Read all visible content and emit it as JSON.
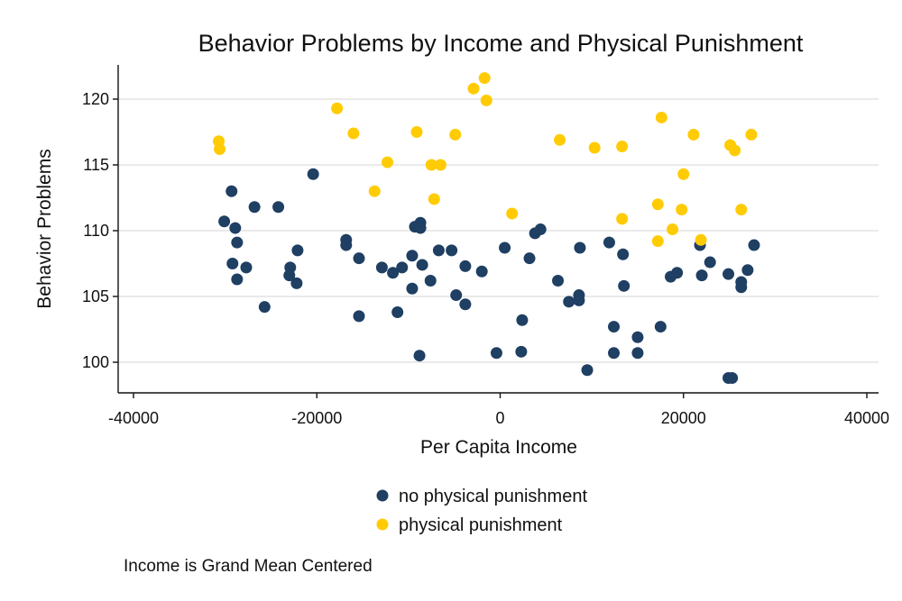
{
  "chart_data": {
    "type": "scatter",
    "title": "Behavior Problems by Income and Physical Punishment",
    "xlabel": "Per Capita Income",
    "ylabel": "Behavior Problems",
    "note": "Income is Grand Mean Centered",
    "xlim": [
      -40000,
      40000
    ],
    "ylim": [
      98,
      122.5
    ],
    "x_ticks": [
      -40000,
      -20000,
      0,
      20000,
      40000
    ],
    "x_tick_labels": [
      "-40000",
      "-20000",
      "0",
      "20000",
      "40000"
    ],
    "y_ticks": [
      100,
      105,
      110,
      115,
      120
    ],
    "y_tick_labels": [
      "100",
      "105",
      "110",
      "115",
      "120"
    ],
    "grid": "horizontal",
    "legend_position": "bottom",
    "series": [
      {
        "name": "no physical punishment",
        "color": "#1f3f63",
        "points": [
          [
            -30100,
            110.7
          ],
          [
            -29300,
            113.0
          ],
          [
            -28900,
            110.2
          ],
          [
            -28700,
            109.1
          ],
          [
            -29200,
            107.5
          ],
          [
            -28700,
            106.3
          ],
          [
            -27700,
            107.2
          ],
          [
            -26800,
            111.8
          ],
          [
            -25700,
            104.2
          ],
          [
            -24200,
            111.8
          ],
          [
            -22900,
            107.2
          ],
          [
            -23000,
            106.6
          ],
          [
            -22200,
            106.0
          ],
          [
            -22100,
            108.5
          ],
          [
            -20400,
            114.3
          ],
          [
            -16800,
            109.3
          ],
          [
            -16800,
            108.9
          ],
          [
            -15400,
            107.9
          ],
          [
            -15400,
            103.5
          ],
          [
            -12900,
            107.2
          ],
          [
            -11700,
            106.8
          ],
          [
            -11200,
            103.8
          ],
          [
            -10700,
            107.2
          ],
          [
            -9600,
            108.1
          ],
          [
            -9600,
            105.6
          ],
          [
            -9300,
            110.3
          ],
          [
            -8700,
            110.6
          ],
          [
            -8700,
            110.2
          ],
          [
            -8500,
            107.4
          ],
          [
            -8800,
            100.5
          ],
          [
            -7600,
            106.2
          ],
          [
            -6700,
            108.5
          ],
          [
            -5300,
            108.5
          ],
          [
            -4800,
            105.1
          ],
          [
            -3800,
            107.3
          ],
          [
            -3800,
            104.4
          ],
          [
            -2000,
            106.9
          ],
          [
            -400,
            100.7
          ],
          [
            500,
            108.7
          ],
          [
            2400,
            103.2
          ],
          [
            2300,
            100.8
          ],
          [
            3200,
            107.9
          ],
          [
            3800,
            109.8
          ],
          [
            4400,
            110.1
          ],
          [
            6300,
            106.2
          ],
          [
            7500,
            104.6
          ],
          [
            8600,
            104.7
          ],
          [
            8600,
            105.1
          ],
          [
            8700,
            108.7
          ],
          [
            9500,
            99.4
          ],
          [
            11900,
            109.1
          ],
          [
            12400,
            102.7
          ],
          [
            12400,
            100.7
          ],
          [
            13400,
            108.2
          ],
          [
            13500,
            105.8
          ],
          [
            15000,
            101.9
          ],
          [
            15000,
            100.7
          ],
          [
            17500,
            102.7
          ],
          [
            18600,
            106.5
          ],
          [
            19300,
            106.8
          ],
          [
            21800,
            108.9
          ],
          [
            22000,
            106.6
          ],
          [
            22900,
            107.6
          ],
          [
            24900,
            106.7
          ],
          [
            24900,
            98.8
          ],
          [
            25300,
            98.8
          ],
          [
            26300,
            106.1
          ],
          [
            26300,
            105.7
          ],
          [
            27000,
            107.0
          ],
          [
            27700,
            108.9
          ]
        ]
      },
      {
        "name": "physical punishment",
        "color": "#ffcb05",
        "points": [
          [
            -30700,
            116.8
          ],
          [
            -30600,
            116.2
          ],
          [
            -17800,
            119.3
          ],
          [
            -16000,
            117.4
          ],
          [
            -13700,
            113.0
          ],
          [
            -12300,
            115.2
          ],
          [
            -9100,
            117.5
          ],
          [
            -7500,
            115.0
          ],
          [
            -7200,
            112.4
          ],
          [
            -6500,
            115.0
          ],
          [
            -4900,
            117.3
          ],
          [
            -2900,
            120.8
          ],
          [
            -1700,
            121.6
          ],
          [
            -1500,
            119.9
          ],
          [
            1300,
            111.3
          ],
          [
            6500,
            116.9
          ],
          [
            10300,
            116.3
          ],
          [
            13300,
            116.4
          ],
          [
            13300,
            110.9
          ],
          [
            17200,
            112.0
          ],
          [
            17200,
            109.2
          ],
          [
            17600,
            118.6
          ],
          [
            18800,
            110.1
          ],
          [
            19800,
            111.6
          ],
          [
            20000,
            114.3
          ],
          [
            21100,
            117.3
          ],
          [
            21900,
            109.3
          ],
          [
            25100,
            116.5
          ],
          [
            25600,
            116.1
          ],
          [
            26300,
            111.6
          ],
          [
            27400,
            117.3
          ]
        ]
      }
    ]
  }
}
